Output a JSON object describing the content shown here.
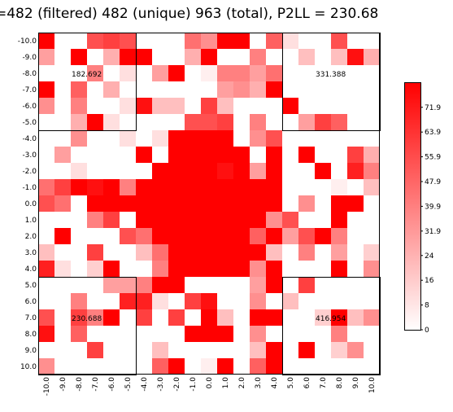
{
  "title": "=482 (filtered) 482 (unique) 963 (total), P2LL = 230.68",
  "chart_data": {
    "type": "heatmap",
    "title": "=482 (filtered) 482 (unique) 963 (total), P2LL = 230.68",
    "x_ticks": [
      "-10.0",
      "-9.0",
      "-8.0",
      "-7.0",
      "-6.0",
      "-5.0",
      "-4.0",
      "-3.0",
      "-2.0",
      "-1.0",
      "0.0",
      "1.0",
      "2.0",
      "3.0",
      "4.0",
      "5.0",
      "6.0",
      "7.0",
      "8.0",
      "9.0",
      "10.0"
    ],
    "y_ticks": [
      "-10.0",
      "-9.0",
      "-8.0",
      "-7.0",
      "-6.0",
      "-5.0",
      "-4.0",
      "-3.0",
      "-2.0",
      "-1.0",
      "0.0",
      "1.0",
      "2.0",
      "3.0",
      "4.0",
      "5.0",
      "6.0",
      "7.0",
      "8.0",
      "9.0",
      "10.0"
    ],
    "colorbar_ticks": [
      0,
      8,
      16,
      24,
      31.9,
      39.9,
      47.9,
      55.9,
      63.9,
      71.9
    ],
    "colorbar_labels": [
      "0",
      "8",
      "16",
      "24",
      "31.9",
      "39.9",
      "47.9",
      "55.9",
      "63.9",
      "71.9"
    ],
    "color_range": [
      0,
      80
    ],
    "color_low": "#ffffff",
    "color_high": "#ff0000",
    "quadrant_labels": [
      "182.692",
      "331.388",
      "230.688",
      "416.954"
    ],
    "values": [
      [
        80,
        0,
        0,
        55,
        60,
        55,
        0,
        0,
        0,
        45,
        35,
        80,
        80,
        0,
        50,
        10,
        0,
        0,
        55,
        0,
        0
      ],
      [
        30,
        0,
        80,
        0,
        25,
        80,
        80,
        0,
        0,
        25,
        80,
        0,
        0,
        40,
        0,
        0,
        20,
        0,
        20,
        75,
        25
      ],
      [
        0,
        0,
        0,
        40,
        0,
        10,
        0,
        30,
        80,
        0,
        5,
        40,
        40,
        30,
        45,
        0,
        0,
        0,
        0,
        0,
        0
      ],
      [
        80,
        0,
        50,
        0,
        25,
        0,
        0,
        0,
        0,
        0,
        0,
        30,
        35,
        25,
        80,
        0,
        0,
        0,
        0,
        0,
        0
      ],
      [
        35,
        0,
        40,
        0,
        0,
        10,
        75,
        20,
        20,
        0,
        60,
        20,
        0,
        0,
        0,
        80,
        0,
        0,
        0,
        0,
        0
      ],
      [
        0,
        0,
        25,
        80,
        10,
        0,
        0,
        0,
        0,
        55,
        55,
        60,
        0,
        40,
        0,
        0,
        30,
        60,
        50,
        0,
        0
      ],
      [
        0,
        0,
        35,
        0,
        0,
        10,
        0,
        10,
        80,
        80,
        80,
        80,
        0,
        35,
        55,
        0,
        0,
        0,
        0,
        0,
        0
      ],
      [
        0,
        30,
        0,
        0,
        0,
        0,
        80,
        0,
        80,
        80,
        80,
        80,
        80,
        0,
        80,
        0,
        80,
        0,
        0,
        60,
        25
      ],
      [
        0,
        0,
        10,
        0,
        0,
        0,
        0,
        80,
        80,
        80,
        80,
        75,
        80,
        30,
        80,
        0,
        0,
        80,
        0,
        70,
        40
      ],
      [
        45,
        60,
        80,
        75,
        80,
        40,
        80,
        80,
        80,
        80,
        80,
        80,
        80,
        80,
        80,
        0,
        0,
        0,
        5,
        0,
        20
      ],
      [
        55,
        45,
        0,
        80,
        80,
        80,
        80,
        80,
        80,
        80,
        80,
        80,
        80,
        80,
        80,
        0,
        35,
        0,
        80,
        80,
        0
      ],
      [
        0,
        0,
        0,
        40,
        60,
        0,
        80,
        80,
        80,
        80,
        80,
        80,
        80,
        80,
        35,
        55,
        0,
        0,
        80,
        0,
        0
      ],
      [
        0,
        80,
        0,
        0,
        0,
        55,
        45,
        80,
        80,
        80,
        80,
        80,
        80,
        50,
        80,
        30,
        55,
        80,
        40,
        0,
        0
      ],
      [
        20,
        0,
        0,
        60,
        0,
        0,
        20,
        45,
        80,
        80,
        80,
        80,
        80,
        80,
        20,
        0,
        40,
        0,
        30,
        0,
        15
      ],
      [
        70,
        10,
        0,
        15,
        80,
        0,
        0,
        40,
        80,
        80,
        80,
        80,
        80,
        35,
        80,
        0,
        0,
        0,
        80,
        0,
        35
      ],
      [
        0,
        0,
        0,
        0,
        30,
        30,
        40,
        80,
        80,
        0,
        0,
        0,
        0,
        30,
        80,
        0,
        60,
        0,
        0,
        0,
        0
      ],
      [
        0,
        0,
        40,
        0,
        0,
        70,
        70,
        10,
        0,
        60,
        75,
        0,
        0,
        35,
        0,
        20,
        0,
        0,
        0,
        0,
        0
      ],
      [
        55,
        0,
        60,
        40,
        80,
        0,
        60,
        0,
        60,
        0,
        80,
        20,
        0,
        80,
        80,
        0,
        0,
        15,
        80,
        20,
        35
      ],
      [
        75,
        0,
        50,
        0,
        0,
        0,
        0,
        0,
        0,
        80,
        80,
        80,
        0,
        35,
        0,
        0,
        0,
        0,
        40,
        0,
        0
      ],
      [
        0,
        0,
        0,
        60,
        0,
        0,
        0,
        20,
        0,
        0,
        0,
        0,
        0,
        20,
        80,
        0,
        80,
        0,
        15,
        35,
        0
      ],
      [
        35,
        0,
        0,
        0,
        0,
        0,
        0,
        50,
        80,
        0,
        5,
        80,
        0,
        50,
        80,
        0,
        0,
        0,
        0,
        0,
        0
      ]
    ]
  }
}
